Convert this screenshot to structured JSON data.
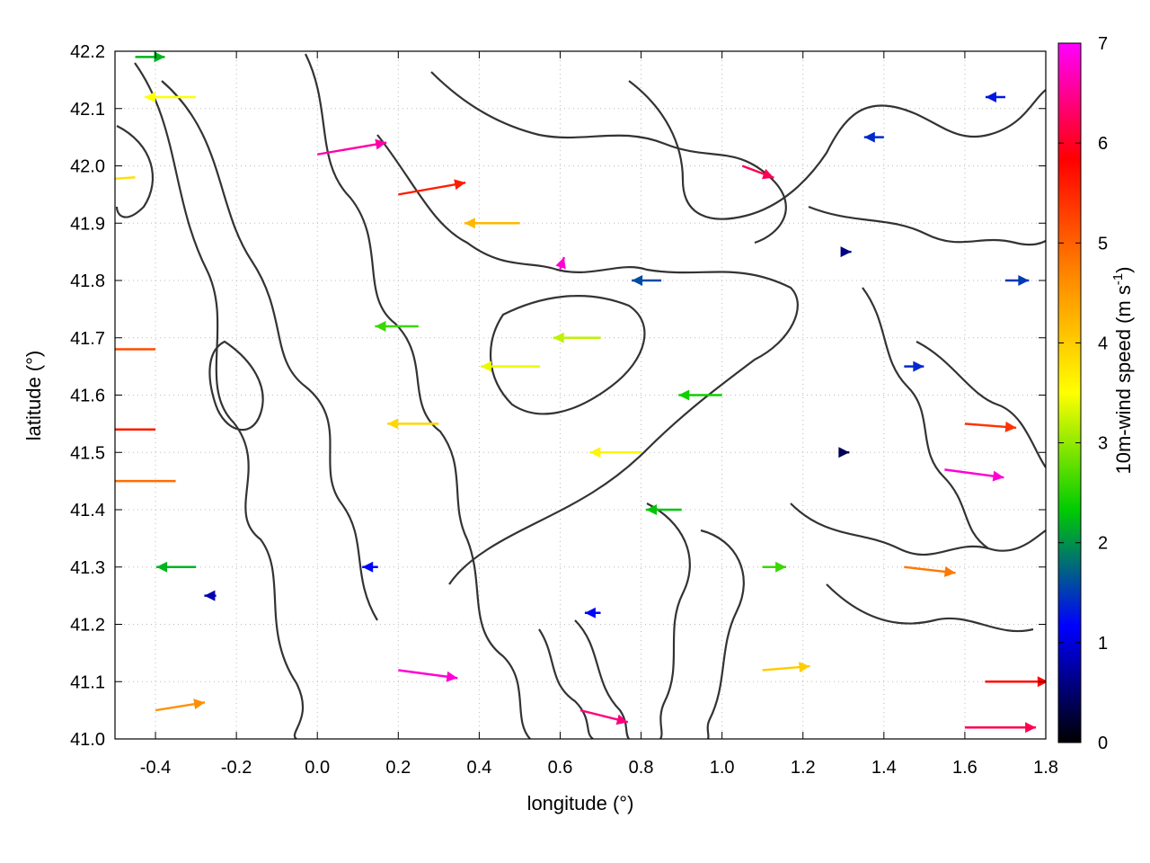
{
  "chart_data": {
    "type": "vector-field",
    "xlabel": "longitude (°)",
    "ylabel": "latitude (°)",
    "xlim": [
      -0.5,
      1.8
    ],
    "ylim": [
      41.0,
      42.2
    ],
    "xticks": [
      "-0.4",
      "-0.2",
      "0.0",
      "0.2",
      "0.4",
      "0.6",
      "0.8",
      "1.0",
      "1.2",
      "1.4",
      "1.6",
      "1.8"
    ],
    "xtick_values": [
      -0.4,
      -0.2,
      0.0,
      0.2,
      0.4,
      0.6,
      0.8,
      1.0,
      1.2,
      1.4,
      1.6,
      1.8
    ],
    "yticks": [
      "41.0",
      "41.1",
      "41.2",
      "41.3",
      "41.4",
      "41.5",
      "41.6",
      "41.7",
      "41.8",
      "41.9",
      "42.0",
      "42.1",
      "42.2"
    ],
    "ytick_values": [
      41.0,
      41.1,
      41.2,
      41.3,
      41.4,
      41.5,
      41.6,
      41.7,
      41.8,
      41.9,
      42.0,
      42.1,
      42.2
    ],
    "grid": true,
    "colorbar": {
      "label": "10m-wind speed (m s",
      "label_sup": "-1",
      "label_end": ")",
      "range": [
        0,
        7
      ],
      "ticks": [
        "0",
        "1",
        "2",
        "3",
        "4",
        "5",
        "6",
        "7"
      ],
      "tick_values": [
        0,
        1,
        2,
        3,
        4,
        5,
        6,
        7
      ],
      "palette": [
        "#000000",
        "#0000ff",
        "#00cc00",
        "#ffff00",
        "#ff8800",
        "#ff0000",
        "#ff00ff"
      ]
    },
    "contour_color": "#333333",
    "vectors": [
      {
        "x": -0.45,
        "y": 42.19,
        "u": 1.5,
        "v": 0.0,
        "speed": 2.2
      },
      {
        "x": -0.3,
        "y": 42.12,
        "u": -2.6,
        "v": 0.0,
        "speed": 3.5
      },
      {
        "x": -0.45,
        "y": 41.98,
        "u": -2.8,
        "v": -0.2,
        "speed": 3.8
      },
      {
        "x": -0.4,
        "y": 41.68,
        "u": -3.5,
        "v": 0.0,
        "speed": 5.2
      },
      {
        "x": -0.4,
        "y": 41.54,
        "u": -4.0,
        "v": 0.0,
        "speed": 5.6
      },
      {
        "x": -0.35,
        "y": 41.45,
        "u": -3.8,
        "v": 0.0,
        "speed": 4.9
      },
      {
        "x": -0.3,
        "y": 41.3,
        "u": -2.0,
        "v": 0.0,
        "speed": 2.2
      },
      {
        "x": -0.25,
        "y": 41.25,
        "u": -0.6,
        "v": 0.0,
        "speed": 0.8
      },
      {
        "x": -0.4,
        "y": 41.05,
        "u": 2.5,
        "v": 0.4,
        "speed": 4.6
      },
      {
        "x": 0.0,
        "y": 42.02,
        "u": 3.5,
        "v": 0.6,
        "speed": 6.6
      },
      {
        "x": 0.2,
        "y": 41.95,
        "u": 3.4,
        "v": 0.6,
        "speed": 5.6
      },
      {
        "x": 0.25,
        "y": 41.72,
        "u": -2.2,
        "v": 0.0,
        "speed": 2.6
      },
      {
        "x": 0.3,
        "y": 41.55,
        "u": -2.6,
        "v": 0.0,
        "speed": 3.9
      },
      {
        "x": 0.15,
        "y": 41.3,
        "u": -0.8,
        "v": 0.0,
        "speed": 1.2
      },
      {
        "x": 0.2,
        "y": 41.12,
        "u": 3.0,
        "v": -0.4,
        "speed": 6.8
      },
      {
        "x": 0.5,
        "y": 41.9,
        "u": -2.8,
        "v": 0.0,
        "speed": 4.2
      },
      {
        "x": 0.55,
        "y": 41.65,
        "u": -3.0,
        "v": 0.0,
        "speed": 3.4
      },
      {
        "x": 0.6,
        "y": 41.82,
        "u": 0.2,
        "v": 0.6,
        "speed": 6.8
      },
      {
        "x": 0.7,
        "y": 41.7,
        "u": -2.4,
        "v": 0.0,
        "speed": 3.2
      },
      {
        "x": 0.8,
        "y": 41.5,
        "u": -2.6,
        "v": 0.0,
        "speed": 3.6
      },
      {
        "x": 0.85,
        "y": 41.8,
        "u": -1.5,
        "v": 0.0,
        "speed": 1.6
      },
      {
        "x": 0.9,
        "y": 41.4,
        "u": -1.8,
        "v": 0.0,
        "speed": 2.3
      },
      {
        "x": 0.7,
        "y": 41.22,
        "u": -0.8,
        "v": 0.0,
        "speed": 1.2
      },
      {
        "x": 0.65,
        "y": 41.05,
        "u": 2.4,
        "v": -0.6,
        "speed": 6.4
      },
      {
        "x": 1.05,
        "y": 42.0,
        "u": 1.6,
        "v": -0.6,
        "speed": 6.2
      },
      {
        "x": 1.0,
        "y": 41.6,
        "u": -2.2,
        "v": 0.0,
        "speed": 2.4
      },
      {
        "x": 1.1,
        "y": 41.3,
        "u": 1.2,
        "v": 0.0,
        "speed": 2.6
      },
      {
        "x": 1.1,
        "y": 41.12,
        "u": 2.4,
        "v": 0.2,
        "speed": 4.0
      },
      {
        "x": 1.3,
        "y": 41.85,
        "u": 0.4,
        "v": 0.0,
        "speed": 0.6
      },
      {
        "x": 1.3,
        "y": 41.5,
        "u": 0.3,
        "v": 0.0,
        "speed": 0.4
      },
      {
        "x": 1.45,
        "y": 41.65,
        "u": 1.0,
        "v": 0.0,
        "speed": 1.4
      },
      {
        "x": 1.45,
        "y": 41.3,
        "u": 2.6,
        "v": -0.3,
        "speed": 4.8
      },
      {
        "x": 1.6,
        "y": 41.55,
        "u": 2.6,
        "v": -0.2,
        "speed": 5.4
      },
      {
        "x": 1.65,
        "y": 41.1,
        "u": 3.2,
        "v": 0.0,
        "speed": 5.8
      },
      {
        "x": 1.6,
        "y": 41.02,
        "u": 3.6,
        "v": 0.0,
        "speed": 6.2
      },
      {
        "x": 1.7,
        "y": 41.8,
        "u": 1.2,
        "v": 0.0,
        "speed": 1.5
      },
      {
        "x": 1.7,
        "y": 42.12,
        "u": -1.0,
        "v": 0.0,
        "speed": 1.3
      },
      {
        "x": 1.55,
        "y": 41.47,
        "u": 3.0,
        "v": -0.4,
        "speed": 6.8
      },
      {
        "x": 1.4,
        "y": 42.05,
        "u": -1.0,
        "v": 0.0,
        "speed": 1.4
      }
    ]
  }
}
